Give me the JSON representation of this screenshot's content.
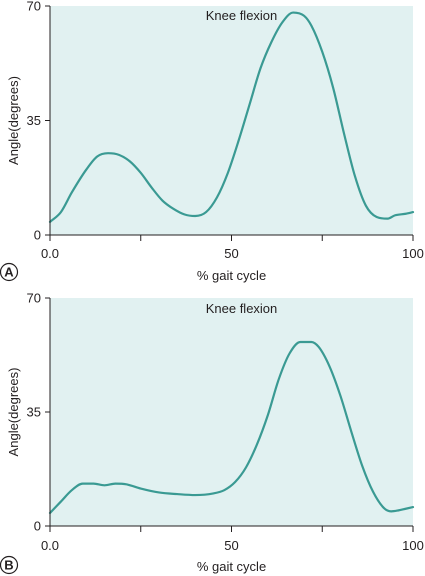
{
  "colors": {
    "plot_background": "#e1f1f1",
    "line": "#3a9a93",
    "axis": "#231f20"
  },
  "chart_data": [
    {
      "panel": "A",
      "type": "line",
      "title": "Knee flexion",
      "xlabel": "% gait cycle",
      "ylabel": "Angle(degrees)",
      "xlim": [
        0,
        100
      ],
      "ylim": [
        0,
        70
      ],
      "xticks": [
        0,
        50,
        100
      ],
      "xtick_labels": [
        "0.0",
        "50",
        "100"
      ],
      "minor_xticks": [
        25,
        75
      ],
      "yticks": [
        0,
        35,
        70
      ],
      "ytick_labels": [
        "0",
        "35",
        "70"
      ],
      "grid": false,
      "series": [
        {
          "x": [
            0,
            3,
            6,
            10,
            13,
            16,
            19,
            22,
            25,
            28,
            31,
            34,
            37,
            40,
            43,
            46,
            49,
            52,
            55,
            58,
            61,
            64,
            67,
            70,
            72,
            75,
            78,
            81,
            84,
            87,
            90,
            93,
            95,
            98,
            100
          ],
          "y": [
            4,
            7,
            13,
            20,
            24,
            25,
            24.5,
            22.5,
            19,
            14.5,
            10.5,
            8,
            6.3,
            5.8,
            7,
            11.5,
            19,
            29,
            40,
            51,
            59,
            65,
            68,
            67,
            64,
            56,
            45,
            31,
            18,
            9,
            5.5,
            5,
            6,
            6.5,
            7
          ]
        }
      ]
    },
    {
      "panel": "B",
      "type": "line",
      "title": "Knee flexion",
      "xlabel": "% gait cycle",
      "ylabel": "Angle(degrees)",
      "xlim": [
        0,
        100
      ],
      "ylim": [
        0,
        70
      ],
      "xticks": [
        0,
        50,
        100
      ],
      "xtick_labels": [
        "0.0",
        "50",
        "100"
      ],
      "minor_xticks": [
        25,
        75
      ],
      "yticks": [
        0,
        35,
        70
      ],
      "ytick_labels": [
        "0",
        "35",
        "70"
      ],
      "grid": false,
      "series": [
        {
          "x": [
            0,
            3,
            6,
            9,
            12,
            15,
            18,
            21,
            25,
            30,
            35,
            40,
            45,
            48,
            51,
            54,
            57,
            60,
            63,
            66,
            69,
            72,
            74,
            77,
            80,
            83,
            86,
            89,
            92,
            94,
            96,
            98,
            100
          ],
          "y": [
            4,
            7.5,
            11,
            13,
            13,
            12.5,
            13,
            12.8,
            11.5,
            10.3,
            9.8,
            9.5,
            10,
            11,
            13.5,
            18,
            25,
            34,
            45,
            53,
            56.5,
            56.5,
            55,
            49,
            40,
            29,
            18.5,
            10.5,
            5.5,
            4.5,
            4.8,
            5.3,
            5.8
          ]
        }
      ]
    }
  ]
}
